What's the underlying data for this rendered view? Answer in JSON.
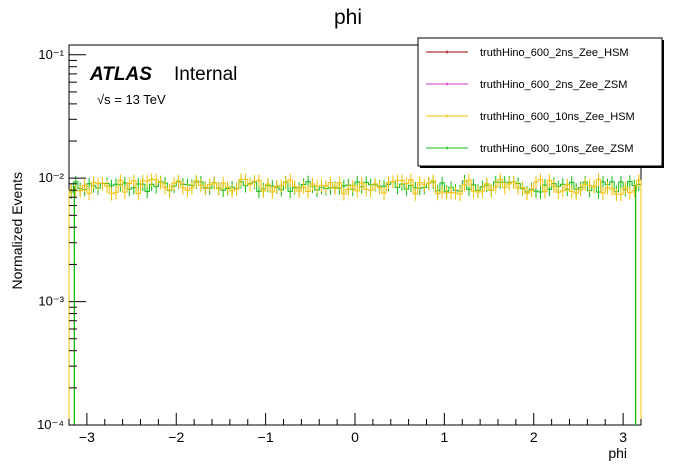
{
  "chart_data": {
    "type": "line",
    "title": "phi",
    "xlabel": "phi",
    "ylabel": "Normalized Events",
    "xlim": [
      -3.2,
      3.2
    ],
    "ylim": [
      0.0001,
      0.12
    ],
    "log_y": true,
    "grid": false,
    "x_ticks": [
      -3,
      -2,
      -1,
      0,
      1,
      2,
      3
    ],
    "x_tick_labels": [
      "−3",
      "−2",
      "−1",
      "0",
      "1",
      "2",
      "3"
    ],
    "y_ticks": [
      0.0001,
      0.001,
      0.01,
      0.1
    ],
    "y_tick_labels": [
      "10⁻⁴",
      "10⁻³",
      "10⁻²",
      "10⁻¹"
    ],
    "bins": 128,
    "legend_position": "top-right",
    "annotations": {
      "experiment": "ATLAS",
      "status": "Internal",
      "energy": "√s = 13 TeV"
    },
    "series": [
      {
        "name": "truthHino_600_2ns_Zee_HSM",
        "color": "#990000",
        "mean": 0.0088,
        "jitter": 0.0
      },
      {
        "name": "truthHino_600_2ns_Zee_ZSM",
        "color": "#cc33cc",
        "mean": 0.0088,
        "jitter": 0.0
      },
      {
        "name": "truthHino_600_10ns_Zee_HSM",
        "color": "#f5c000",
        "mean": 0.0086,
        "jitter": 0.00075
      },
      {
        "name": "truthHino_600_10ns_Zee_ZSM",
        "color": "#11bb11",
        "mean": 0.0086,
        "jitter": 0.00055
      }
    ]
  }
}
